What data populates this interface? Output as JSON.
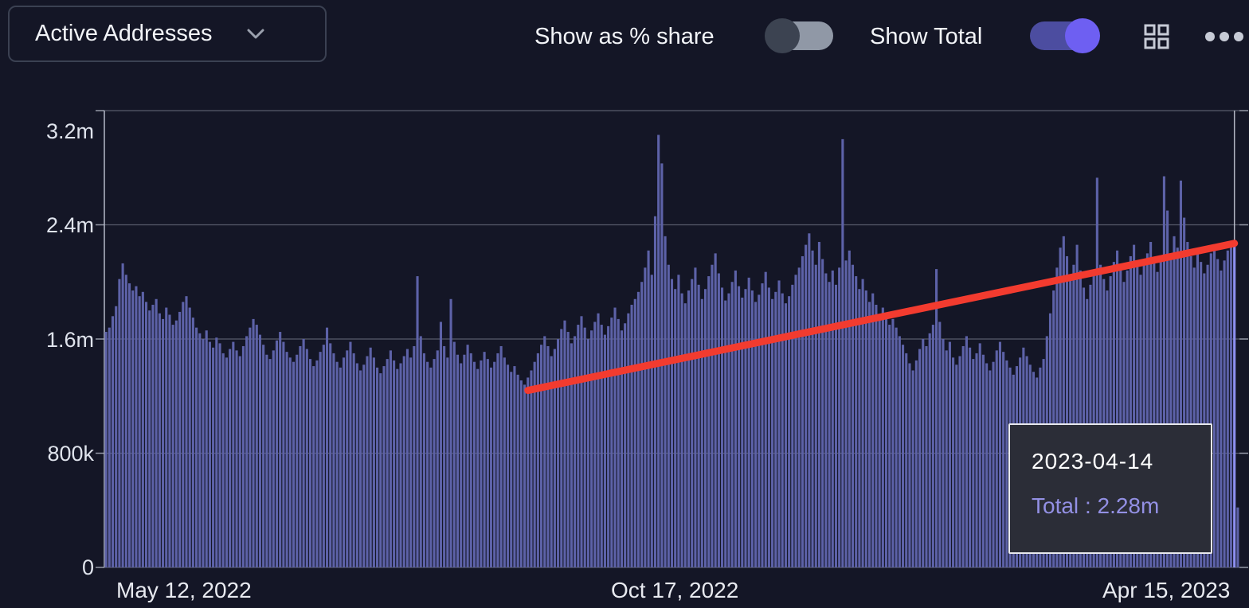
{
  "header": {
    "metric_selector": {
      "label": "Active Addresses"
    },
    "share_toggle": {
      "label": "Show as % share",
      "state": "off"
    },
    "total_toggle": {
      "label": "Show Total",
      "state": "on"
    },
    "icons": [
      "grid-view-icon",
      "more-options-icon"
    ]
  },
  "tooltip": {
    "date": "2023-04-14",
    "total_label": "Total",
    "separator": ":",
    "total_value": "2.28m"
  },
  "chart_data": {
    "type": "bar",
    "title": "Active Addresses",
    "x_tick_labels": [
      "May 12, 2022",
      "Oct 17, 2022",
      "Apr 15, 2023"
    ],
    "y_tick_labels": [
      "0",
      "800k",
      "1.6m",
      "2.4m",
      "3.2m"
    ],
    "y_ticks_millions": [
      0,
      0.8,
      1.6,
      2.4,
      3.2
    ],
    "ylim_millions": [
      0,
      3.2
    ],
    "start_date": "2022-05-12",
    "end_date": "2023-04-15",
    "value_unit": "millions of active addresses",
    "grid": true,
    "legend": "none",
    "highlight_index": 337,
    "highlight_date": "2023-04-14",
    "highlight_value_label": "2.28m",
    "trend_line": {
      "start_index": 126,
      "start_value": 1.24,
      "end_index": 337,
      "end_value": 2.27
    },
    "colors": {
      "background": "#141626",
      "bar": "#5d62a8",
      "bar_highlight": "#8d90f0",
      "trend": "#f23b2f",
      "grid": "#aab0c0",
      "axis": "#b4bac8",
      "accent_toggle": "#6e5ff2"
    },
    "values": [
      1.65,
      1.68,
      1.76,
      1.83,
      2.02,
      2.13,
      2.05,
      1.99,
      1.94,
      1.97,
      1.9,
      1.93,
      1.86,
      1.8,
      1.84,
      1.88,
      1.78,
      1.74,
      1.82,
      1.77,
      1.7,
      1.73,
      1.79,
      1.86,
      1.9,
      1.82,
      1.75,
      1.68,
      1.64,
      1.6,
      1.66,
      1.58,
      1.54,
      1.61,
      1.57,
      1.5,
      1.47,
      1.53,
      1.58,
      1.52,
      1.48,
      1.55,
      1.62,
      1.68,
      1.74,
      1.7,
      1.63,
      1.56,
      1.49,
      1.46,
      1.52,
      1.59,
      1.65,
      1.58,
      1.51,
      1.47,
      1.44,
      1.49,
      1.55,
      1.6,
      1.53,
      1.46,
      1.41,
      1.45,
      1.51,
      1.56,
      1.68,
      1.57,
      1.5,
      1.44,
      1.4,
      1.47,
      1.52,
      1.58,
      1.5,
      1.43,
      1.38,
      1.42,
      1.48,
      1.54,
      1.47,
      1.4,
      1.36,
      1.41,
      1.46,
      1.52,
      1.45,
      1.39,
      1.43,
      1.48,
      1.53,
      1.47,
      1.55,
      2.04,
      1.62,
      1.5,
      1.44,
      1.4,
      1.46,
      1.52,
      1.72,
      1.55,
      1.47,
      1.88,
      1.58,
      1.49,
      1.43,
      1.49,
      1.56,
      1.5,
      1.44,
      1.39,
      1.45,
      1.51,
      1.46,
      1.4,
      1.44,
      1.5,
      1.55,
      1.47,
      1.42,
      1.37,
      1.41,
      1.35,
      1.31,
      1.28,
      1.33,
      1.38,
      1.44,
      1.5,
      1.56,
      1.62,
      1.55,
      1.48,
      1.53,
      1.6,
      1.67,
      1.73,
      1.65,
      1.57,
      1.62,
      1.7,
      1.76,
      1.68,
      1.6,
      1.66,
      1.72,
      1.78,
      1.7,
      1.63,
      1.69,
      1.75,
      1.82,
      1.74,
      1.66,
      1.71,
      1.78,
      1.84,
      1.88,
      1.93,
      2.0,
      2.1,
      2.22,
      2.05,
      2.46,
      3.03,
      2.83,
      2.32,
      2.12,
      2.02,
      1.95,
      2.05,
      1.92,
      1.85,
      1.94,
      2.02,
      2.1,
      1.98,
      1.88,
      1.95,
      2.04,
      2.12,
      2.2,
      2.06,
      1.96,
      1.87,
      1.92,
      2.0,
      2.08,
      1.97,
      1.89,
      1.95,
      2.03,
      1.94,
      1.86,
      1.91,
      1.99,
      2.07,
      1.96,
      1.88,
      1.93,
      2.01,
      1.92,
      1.85,
      1.9,
      1.98,
      2.05,
      2.1,
      2.18,
      2.26,
      2.34,
      2.22,
      2.12,
      2.28,
      2.16,
      2.06,
      2.0,
      2.08,
      1.98,
      2.1,
      3.0,
      2.15,
      2.22,
      2.12,
      2.04,
      1.95,
      2.02,
      1.94,
      1.86,
      1.92,
      1.84,
      1.77,
      1.82,
      1.75,
      1.7,
      1.74,
      1.68,
      1.62,
      1.56,
      1.5,
      1.43,
      1.38,
      1.45,
      1.53,
      1.6,
      1.55,
      1.64,
      1.7,
      2.09,
      1.72,
      1.6,
      1.52,
      1.58,
      1.47,
      1.42,
      1.48,
      1.55,
      1.62,
      1.54,
      1.46,
      1.5,
      1.57,
      1.49,
      1.43,
      1.38,
      1.44,
      1.52,
      1.58,
      1.51,
      1.45,
      1.4,
      1.35,
      1.41,
      1.47,
      1.54,
      1.48,
      1.42,
      1.37,
      1.33,
      1.4,
      1.46,
      1.62,
      1.78,
      1.94,
      2.1,
      2.24,
      2.32,
      2.18,
      2.05,
      2.12,
      2.26,
      2.08,
      1.96,
      1.88,
      1.98,
      2.06,
      2.73,
      2.12,
      2.02,
      1.94,
      2.04,
      2.14,
      2.22,
      2.1,
      2.0,
      2.08,
      2.18,
      2.26,
      2.15,
      2.05,
      2.12,
      2.2,
      2.28,
      2.16,
      2.07,
      2.14,
      2.74,
      2.5,
      2.2,
      2.32,
      2.24,
      2.71,
      2.45,
      2.28,
      2.18,
      2.1,
      2.22,
      2.14,
      2.06,
      2.12,
      2.2,
      2.26,
      2.16,
      2.08,
      2.15,
      2.22,
      2.25,
      2.28,
      0.42
    ]
  }
}
